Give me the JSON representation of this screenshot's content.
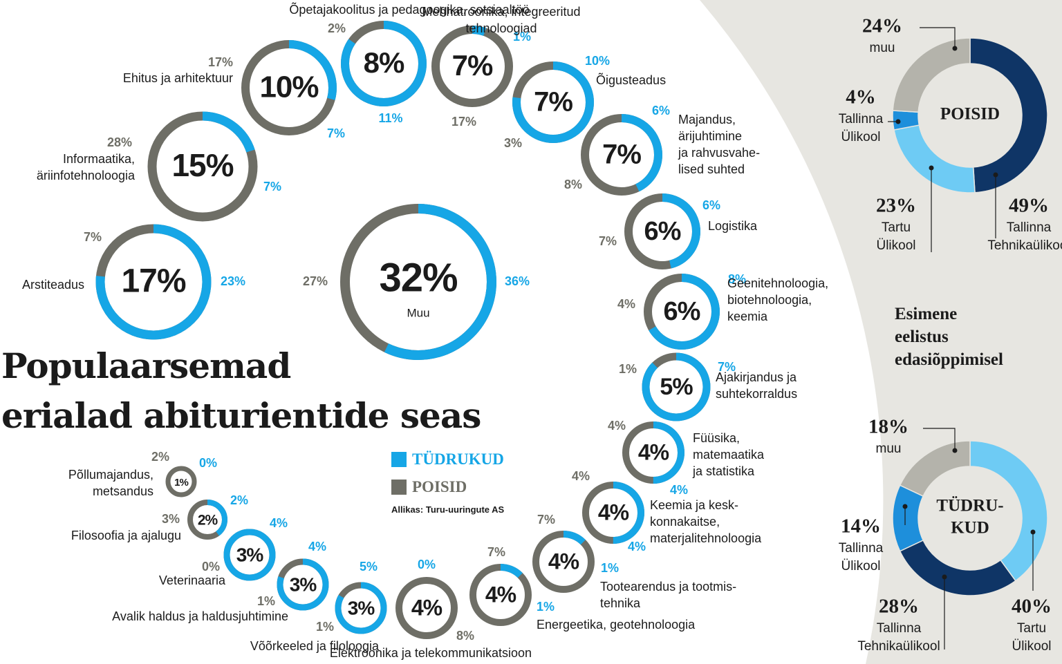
{
  "title_line1": "Populaarsemad",
  "title_line2": "erialad abiturientide seas",
  "legend": {
    "girls_label": "TÜDRUKUD",
    "boys_label": "POISID"
  },
  "source": "Allikas: Turu-uuringute AS",
  "side_heading": [
    "Esimene",
    "eelistus",
    "edasiõppimisel"
  ],
  "colors": {
    "girls": "#16a6e6",
    "boys": "#6e6e66",
    "side_panel": "#e7e6e1",
    "text": "#1b1b1b",
    "dark_navy": "#0f3566",
    "mid_blue": "#1e8fdb",
    "light_blue": "#6ecbf4",
    "grey": "#b4b3ab"
  },
  "chart_data": [
    {
      "type": "donut-grid",
      "series": [
        {
          "name": "TÜDRUKUD"
        },
        {
          "name": "POISID"
        }
      ],
      "items": [
        {
          "field": "Muu",
          "total": "32%",
          "girls": "36%",
          "boys": "27%"
        },
        {
          "field": "Arstiteadus",
          "total": "17%",
          "girls": "23%",
          "boys": "7%"
        },
        {
          "field": "Informaatika, äriinfotehnoloogia",
          "total": "15%",
          "girls": "7%",
          "boys": "28%"
        },
        {
          "field": "Ehitus ja arhitektuur",
          "total": "10%",
          "girls": "7%",
          "boys": "17%"
        },
        {
          "field": "Õpetajakoolitus ja pedagoogika, sotsiaaltöö",
          "total": "8%",
          "girls": "11%",
          "boys": "2%"
        },
        {
          "field": "Mehhatroonika, integreeritud tehnoloogiad",
          "total": "7%",
          "girls": "1%",
          "boys": "17%"
        },
        {
          "field": "Õigusteadus",
          "total": "7%",
          "girls": "10%",
          "boys": "3%"
        },
        {
          "field": "Majandus, ärijuhtimine ja rahvusvahelised suhted",
          "total": "7%",
          "girls": "6%",
          "boys": "8%"
        },
        {
          "field": "Logistika",
          "total": "6%",
          "girls": "6%",
          "boys": "7%"
        },
        {
          "field": "Geenitehnoloogia, biotehnoloogia, keemia",
          "total": "6%",
          "girls": "8%",
          "boys": "4%"
        },
        {
          "field": "Ajakirjandus ja suhtekorraldus",
          "total": "5%",
          "girls": "7%",
          "boys": "1%"
        },
        {
          "field": "Füüsika, matemaatika ja statistika",
          "total": "4%",
          "girls": "4%",
          "boys": "4%"
        },
        {
          "field": "Keemia ja keskkonnakaitse, materjalitehnoloogia",
          "total": "4%",
          "girls": "4%",
          "boys": "4%"
        },
        {
          "field": "Tootearendus ja tootmistehnika",
          "total": "4%",
          "girls": "1%",
          "boys": "7%"
        },
        {
          "field": "Energeetika, geotehnoloogia",
          "total": "4%",
          "girls": "1%",
          "boys": "7%"
        },
        {
          "field": "Elektroonika ja telekommunikatsioon",
          "total": "4%",
          "girls": "0%",
          "boys": "8%"
        },
        {
          "field": "Võõrkeeled ja filoloogia",
          "total": "3%",
          "girls": "5%",
          "boys": "1%"
        },
        {
          "field": "Avalik haldus ja haldusjuhtimine",
          "total": "3%",
          "girls": "4%",
          "boys": "1%"
        },
        {
          "field": "Veterinaaria",
          "total": "3%",
          "girls": "4%",
          "boys": "0%"
        },
        {
          "field": "Filosoofia ja ajalugu",
          "total": "2%",
          "girls": "2%",
          "boys": "3%"
        },
        {
          "field": "Põllumajandus, metsandus",
          "total": "1%",
          "girls": "0%",
          "boys": "2%"
        }
      ]
    },
    {
      "type": "pie",
      "title": "POISID",
      "slices": [
        {
          "label": "Tallinna Tehnikaülikool",
          "value": 49
        },
        {
          "label": "Tartu Ülikool",
          "value": 23
        },
        {
          "label": "Tallinna Ülikool",
          "value": 4
        },
        {
          "label": "muu",
          "value": 24
        }
      ]
    },
    {
      "type": "pie",
      "title": "TÜDRUKUD",
      "slices": [
        {
          "label": "Tartu Ülikool",
          "value": 40
        },
        {
          "label": "Tallinna Tehnikaülikool",
          "value": 28
        },
        {
          "label": "Tallinna Ülikool",
          "value": 14
        },
        {
          "label": "muu",
          "value": 18
        }
      ]
    }
  ]
}
